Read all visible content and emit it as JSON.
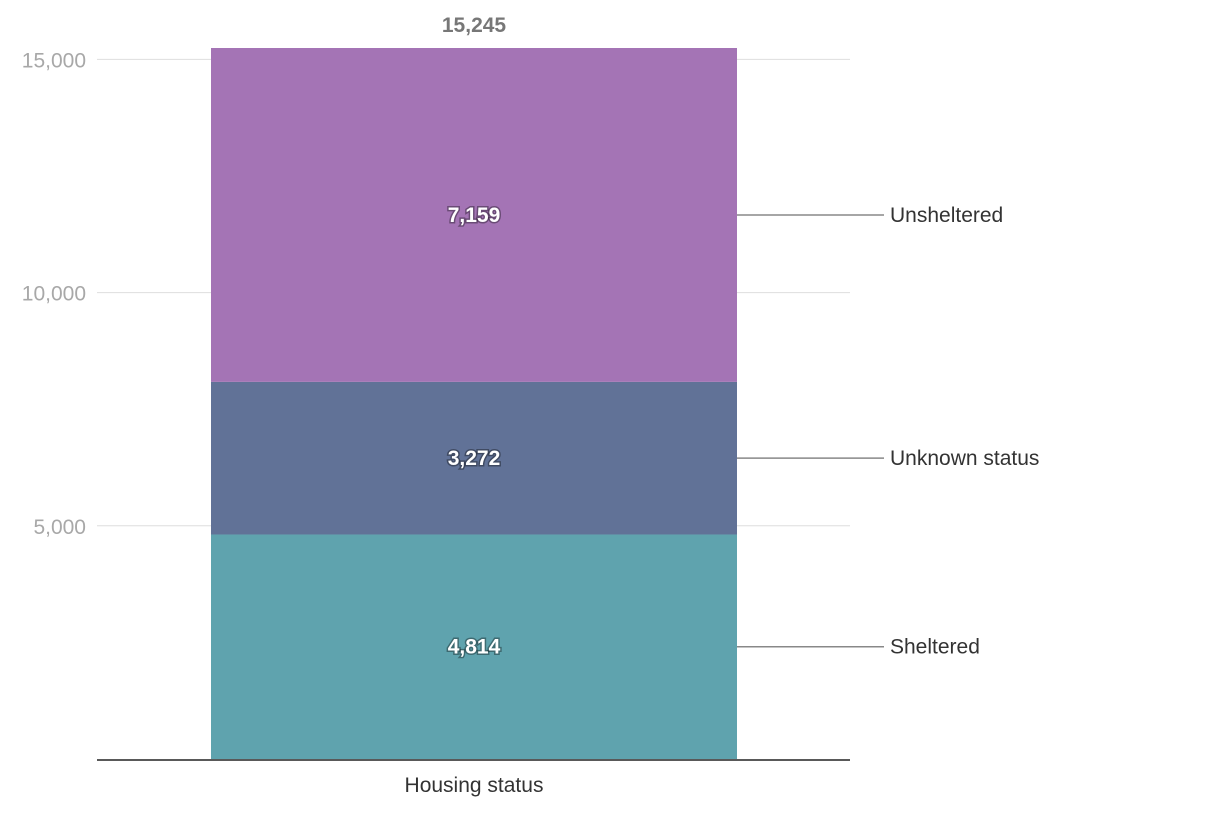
{
  "chart_data": {
    "type": "bar",
    "stacked": true,
    "categories": [
      "Housing status"
    ],
    "series": [
      {
        "name": "Sheltered",
        "values": [
          4814
        ],
        "color": "#5fa3ae"
      },
      {
        "name": "Unknown status",
        "values": [
          3272
        ],
        "color": "#617297"
      },
      {
        "name": "Unsheltered",
        "values": [
          7159
        ],
        "color": "#a474b5"
      }
    ],
    "total_label": "15,245",
    "segment_labels": [
      "4,814",
      "3,272",
      "7,159"
    ],
    "yticks": [
      {
        "value": 5000,
        "label": "5,000"
      },
      {
        "value": 10000,
        "label": "10,000"
      },
      {
        "value": 15000,
        "label": "15,000"
      }
    ],
    "ylim": [
      0,
      15245
    ],
    "grid": true,
    "legend": "right, direct labels with leader lines",
    "title": "",
    "xlabel": "",
    "ylabel": ""
  }
}
